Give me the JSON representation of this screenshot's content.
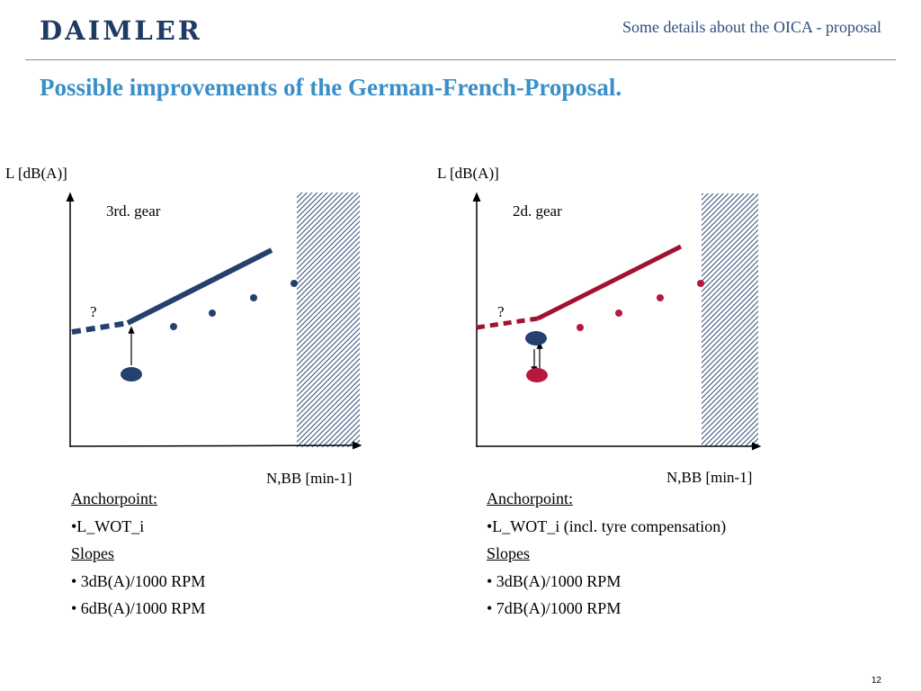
{
  "header": {
    "logo": "DAIMLER",
    "subtitle": "Some details about the OICA - proposal"
  },
  "title": "Possible improvements of the German-French-Proposal.",
  "colors": {
    "logo": "#1f3a63",
    "title": "#3a8fc8",
    "navy": "#24406e",
    "crimson": "#a01232"
  },
  "left_panel": {
    "y_label": "L [dB(A)]",
    "x_label": "N,BB [min-1]",
    "gear_label": "3rd. gear",
    "question": "?",
    "notes": {
      "anchor_heading": "Anchorpoint:",
      "anchor_item": "•L_WOT_i",
      "slopes_heading": "Slopes",
      "slopes": [
        "• 3dB(A)/1000 RPM",
        "• 6dB(A)/1000 RPM"
      ]
    }
  },
  "right_panel": {
    "y_label": "L [dB(A)]",
    "x_label": "N,BB [min-1]",
    "gear_label": "2d. gear",
    "question": "?",
    "notes": {
      "anchor_heading": "Anchorpoint:",
      "anchor_item": "•L_WOT_i (incl. tyre compensation)",
      "slopes_heading": "Slopes",
      "slopes": [
        "• 3dB(A)/1000 RPM",
        "• 7dB(A)/1000 RPM"
      ]
    }
  },
  "page_number": "12"
}
